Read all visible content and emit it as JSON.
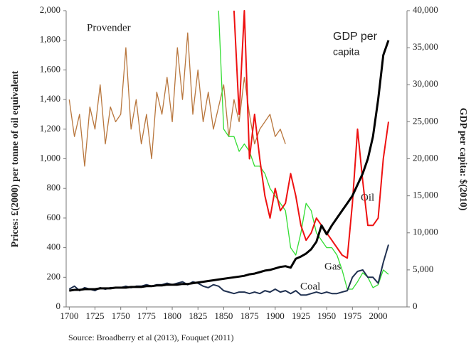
{
  "chart_data": {
    "type": "line",
    "y_axis_label": "Prices: £(2000) per tonne of oil equivalent",
    "y2_axis_label": "GDP per capita: $(2010)",
    "source": "Source: Broadberry et al (2013), Fouquet (2011)",
    "annotations": {
      "provender": "Provender",
      "gdp": [
        "GDP per",
        "capita"
      ],
      "oil": "Oil",
      "gas": "Gas",
      "coal": "Coal"
    },
    "xlim": [
      1697,
      2028
    ],
    "xticks": [
      1700,
      1725,
      1750,
      1775,
      1800,
      1825,
      1850,
      1875,
      1900,
      1925,
      1950,
      1975,
      2000
    ],
    "ylim": [
      0,
      2000
    ],
    "yticks": [
      0,
      200,
      400,
      600,
      800,
      {
        "value": 1000,
        "label": "1,000"
      },
      {
        "value": 1200,
        "label": "1,200"
      },
      {
        "value": 1400,
        "label": "1,400"
      },
      {
        "value": 1600,
        "label": "1,600"
      },
      {
        "value": 1800,
        "label": "1,800"
      },
      {
        "value": 2000,
        "label": "2,000"
      }
    ],
    "y2lim": [
      0,
      40000
    ],
    "y2ticks": [
      0,
      {
        "value": 5000,
        "label": "5,000"
      },
      {
        "value": 10000,
        "label": "10,000"
      },
      {
        "value": 15000,
        "label": "15,000"
      },
      {
        "value": 20000,
        "label": "20,000"
      },
      {
        "value": 25000,
        "label": "25,000"
      },
      {
        "value": 30000,
        "label": "30,000"
      },
      {
        "value": 35000,
        "label": "35,000"
      },
      {
        "value": 40000,
        "label": "40,000"
      }
    ],
    "x": [
      1700,
      1705,
      1710,
      1715,
      1720,
      1725,
      1730,
      1735,
      1740,
      1745,
      1750,
      1755,
      1760,
      1765,
      1770,
      1775,
      1780,
      1785,
      1790,
      1795,
      1800,
      1805,
      1810,
      1815,
      1820,
      1825,
      1830,
      1835,
      1840,
      1845,
      1850,
      1855,
      1860,
      1865,
      1870,
      1875,
      1880,
      1885,
      1890,
      1895,
      1900,
      1905,
      1910,
      1915,
      1920,
      1925,
      1930,
      1935,
      1940,
      1945,
      1950,
      1955,
      1960,
      1965,
      1970,
      1975,
      1980,
      1985,
      1990,
      1995,
      2000,
      2005,
      2010
    ],
    "series": [
      {
        "name": "Provender",
        "color": "#b8763d",
        "width": 1.3,
        "values": [
          1400,
          1150,
          1300,
          950,
          1350,
          1200,
          1500,
          1100,
          1350,
          1250,
          1300,
          1750,
          1200,
          1400,
          1100,
          1300,
          1000,
          1450,
          1300,
          1550,
          1250,
          1750,
          1400,
          1850,
          1300,
          1600,
          1250,
          1450,
          1200,
          1350,
          1500,
          1150,
          1400,
          1250,
          1550,
          1300,
          1100,
          1200,
          1250,
          1300,
          1150,
          1200,
          1100,
          null,
          null,
          null,
          null,
          null,
          null,
          null,
          null,
          null,
          null,
          null,
          null,
          null,
          null,
          null,
          null,
          null,
          null,
          null,
          null
        ]
      },
      {
        "name": "Gas",
        "color": "#33dd33",
        "width": 1.3,
        "values": [
          null,
          null,
          null,
          null,
          null,
          null,
          null,
          null,
          null,
          null,
          null,
          null,
          null,
          null,
          null,
          null,
          null,
          null,
          null,
          null,
          null,
          null,
          null,
          null,
          null,
          null,
          null,
          null,
          null,
          2000,
          1200,
          1150,
          1150,
          1050,
          1100,
          1050,
          950,
          950,
          900,
          800,
          750,
          700,
          650,
          400,
          350,
          500,
          700,
          650,
          500,
          450,
          400,
          400,
          350,
          250,
          120,
          120,
          170,
          230,
          200,
          130,
          150,
          250,
          220
        ]
      },
      {
        "name": "Oil",
        "color": "#ee1111",
        "width": 2,
        "values": [
          null,
          null,
          null,
          null,
          null,
          null,
          null,
          null,
          null,
          null,
          null,
          null,
          null,
          null,
          null,
          null,
          null,
          null,
          null,
          null,
          null,
          null,
          null,
          null,
          null,
          null,
          null,
          null,
          null,
          null,
          null,
          null,
          2000,
          1300,
          2000,
          1000,
          1300,
          1000,
          750,
          600,
          800,
          650,
          700,
          900,
          750,
          550,
          450,
          500,
          600,
          550,
          500,
          450,
          400,
          350,
          330,
          700,
          1200,
          850,
          550,
          550,
          600,
          1000,
          1250
        ]
      },
      {
        "name": "Coal",
        "color": "#1f3050",
        "width": 2,
        "values": [
          120,
          140,
          110,
          130,
          120,
          110,
          130,
          120,
          130,
          130,
          130,
          140,
          130,
          140,
          140,
          150,
          140,
          150,
          150,
          160,
          150,
          160,
          170,
          150,
          170,
          160,
          140,
          130,
          150,
          140,
          110,
          100,
          90,
          100,
          100,
          90,
          100,
          90,
          110,
          100,
          120,
          100,
          110,
          90,
          110,
          80,
          80,
          90,
          100,
          90,
          100,
          90,
          90,
          100,
          110,
          200,
          240,
          250,
          200,
          200,
          160,
          300,
          420
        ]
      },
      {
        "name": "GDP per capita",
        "color": "#000000",
        "width": 3,
        "axis": "y2",
        "values": [
          2200,
          2300,
          2300,
          2400,
          2400,
          2400,
          2500,
          2500,
          2500,
          2600,
          2600,
          2600,
          2700,
          2700,
          2700,
          2800,
          2800,
          2900,
          2900,
          3000,
          3000,
          3000,
          3100,
          3100,
          3200,
          3300,
          3400,
          3500,
          3600,
          3700,
          3800,
          3900,
          4000,
          4100,
          4200,
          4400,
          4500,
          4700,
          4900,
          5000,
          5200,
          5400,
          5500,
          5300,
          6500,
          6800,
          7200,
          7800,
          8800,
          11000,
          9800,
          11000,
          12000,
          13000,
          14000,
          15000,
          16500,
          18000,
          20000,
          23000,
          28000,
          34000,
          36000
        ]
      }
    ]
  }
}
